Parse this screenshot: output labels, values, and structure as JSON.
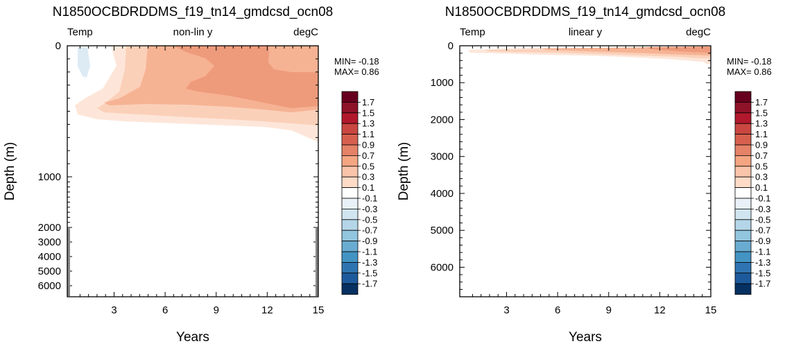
{
  "chart_data": [
    {
      "type": "heatmap",
      "title": "N1850OCBDRDDMS_f19_tn14_gmdcsd_ocn08",
      "left_label": "Temp",
      "center_label": "non-lin y",
      "right_label": "degC",
      "xlabel": "Years",
      "ylabel": "Depth (m)",
      "xlim": [
        0.25,
        15
      ],
      "x_ticks": [
        3,
        6,
        9,
        12,
        15
      ],
      "y_scale": "nonlinear",
      "y_ticks": [
        {
          "value": 0,
          "label": "0"
        },
        {
          "value": 1000,
          "label": "1000"
        },
        {
          "value": 2000,
          "label": "2000"
        },
        {
          "value": 3000,
          "label": "3000"
        },
        {
          "value": 4000,
          "label": "4000"
        },
        {
          "value": 5000,
          "label": "5000"
        },
        {
          "value": 6000,
          "label": "6000"
        }
      ],
      "min_text": "MIN= -0.18",
      "max_text": "MAX=  0.86"
    },
    {
      "type": "heatmap",
      "title": "N1850OCBDRDDMS_f19_tn14_gmdcsd_ocn08",
      "left_label": "Temp",
      "center_label": "linear y",
      "right_label": "degC",
      "xlabel": "Years",
      "ylabel": "Depth (m)",
      "xlim": [
        0.25,
        15
      ],
      "x_ticks": [
        3,
        6,
        9,
        12,
        15
      ],
      "y_scale": "linear",
      "ylim": [
        0,
        6800
      ],
      "y_ticks": [
        {
          "value": 0,
          "label": "0"
        },
        {
          "value": 1000,
          "label": "1000"
        },
        {
          "value": 2000,
          "label": "2000"
        },
        {
          "value": 3000,
          "label": "3000"
        },
        {
          "value": 4000,
          "label": "4000"
        },
        {
          "value": 5000,
          "label": "5000"
        },
        {
          "value": 6000,
          "label": "6000"
        }
      ],
      "min_text": "MIN= -0.18",
      "max_text": "MAX=  0.86"
    }
  ],
  "colorbar": {
    "labels": [
      "1.7",
      "1.5",
      "1.3",
      "1.1",
      "0.9",
      "0.7",
      "0.5",
      "0.3",
      "0.1",
      "-0.1",
      "-0.3",
      "-0.5",
      "-0.7",
      "-0.9",
      "-1.1",
      "-1.3",
      "-1.5",
      "-1.7"
    ],
    "colors": [
      "#67001f",
      "#8e1228",
      "#b2182b",
      "#ca4741",
      "#d6604d",
      "#e58267",
      "#f4a582",
      "#f9c4a9",
      "#fddbc7",
      "#ffffff",
      "#e8f1f7",
      "#d1e5f0",
      "#b4d6e8",
      "#92c5de",
      "#6aabd1",
      "#4393c3",
      "#2f74b1",
      "#1d5a9c",
      "#053061"
    ]
  },
  "fill_colors": {
    "c01": "#fde6d9",
    "c03": "#fbd0b9",
    "c05": "#f6b394",
    "c07": "#ee9b7c",
    "neg": "#ddebf5"
  }
}
